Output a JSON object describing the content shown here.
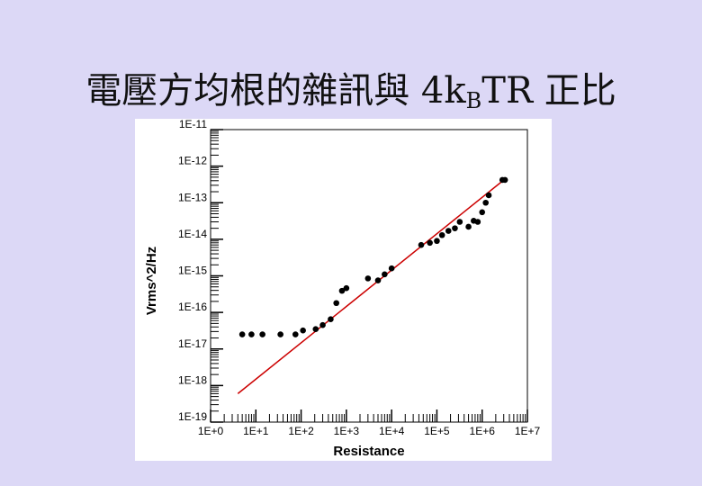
{
  "title": {
    "prefix": "電壓方均根的雜訊與 4k",
    "subscript": "B",
    "suffix": "TR 正比"
  },
  "chart_data": {
    "type": "scatter",
    "xlabel": "Resistance",
    "ylabel": "Vrms^2/Hz",
    "x_scale": "log",
    "y_scale": "log",
    "xlim": [
      1,
      10000000
    ],
    "ylim": [
      1e-19,
      1e-11
    ],
    "x_ticks": [
      "1E+0",
      "1E+1",
      "1E+2",
      "1E+3",
      "1E+4",
      "1E+5",
      "1E+6",
      "1E+7"
    ],
    "y_ticks": [
      "1E-11",
      "1E-12",
      "1E-13",
      "1E-14",
      "1E-15",
      "1E-16",
      "1E-17",
      "1E-18",
      "1E-19"
    ],
    "grid": false,
    "series": [
      {
        "points": [
          [
            5,
            2.5e-17
          ],
          [
            8,
            2.5e-17
          ],
          [
            14,
            2.5e-17
          ],
          [
            35,
            2.5e-17
          ],
          [
            75,
            2.5e-17
          ],
          [
            110,
            3.2e-17
          ],
          [
            210,
            3.5e-17
          ],
          [
            300,
            4.5e-17
          ],
          [
            450,
            6.5e-17
          ],
          [
            600,
            1.8e-16
          ],
          [
            800,
            3.9e-16
          ],
          [
            1000,
            4.6e-16
          ],
          [
            3000,
            8.5e-16
          ],
          [
            5000,
            7.5e-16
          ],
          [
            7000,
            1.1e-15
          ],
          [
            10000,
            1.6e-15
          ],
          [
            45000,
            7e-15
          ],
          [
            70000,
            8e-15
          ],
          [
            100000,
            9e-15
          ],
          [
            130000,
            1.3e-14
          ],
          [
            180000,
            1.7e-14
          ],
          [
            250000,
            2e-14
          ],
          [
            320000,
            3e-14
          ],
          [
            500000,
            2.2e-14
          ],
          [
            650000,
            3.2e-14
          ],
          [
            800000,
            3e-14
          ],
          [
            1000000,
            5.5e-14
          ],
          [
            1200000,
            1e-13
          ],
          [
            1400000,
            1.6e-13
          ],
          [
            2800000,
            4.2e-13
          ],
          [
            3200000,
            4.2e-13
          ]
        ]
      }
    ],
    "fit_line": {
      "x": [
        4,
        2800000
      ],
      "y": [
        6e-19,
        3.9e-13
      ],
      "color": "#cc0000"
    },
    "point_color": "#000000"
  }
}
